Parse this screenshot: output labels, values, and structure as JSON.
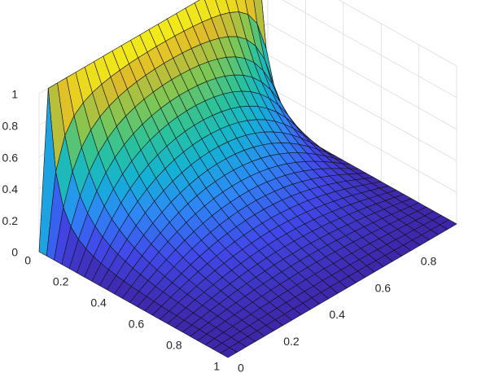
{
  "chart_data": {
    "type": "surface",
    "title": "",
    "xlabel": "",
    "ylabel": "",
    "zlabel": "",
    "xlim": [
      0,
      1
    ],
    "ylim": [
      0,
      1
    ],
    "zlim": [
      0,
      1
    ],
    "grid": true,
    "colormap": "parula",
    "colormap_stops": [
      "#3e26a8",
      "#4148e9",
      "#2e87f7",
      "#13b2d5",
      "#2ac29b",
      "#80c653",
      "#dfbb2a",
      "#f9fb15"
    ],
    "x_ticks": [
      0,
      0.2,
      0.4,
      0.6,
      0.8,
      1
    ],
    "x_tick_labels": [
      "0",
      "0.2",
      "0.4",
      "0.6",
      "0.8",
      "1"
    ],
    "y_ticks": [
      0,
      0.2,
      0.4,
      0.6,
      0.8
    ],
    "y_tick_labels": [
      "0",
      "0.2",
      "0.4",
      "0.6",
      "0.8"
    ],
    "z_ticks": [
      0,
      0.2,
      0.4,
      0.6,
      0.8,
      1
    ],
    "z_tick_labels": [
      "0",
      "0.2",
      "0.4",
      "0.6",
      "0.8",
      "1"
    ],
    "grid_x": [
      0,
      0.04,
      0.08,
      0.12,
      0.16,
      0.2,
      0.24,
      0.28,
      0.32,
      0.36,
      0.4,
      0.44,
      0.48,
      0.52,
      0.56,
      0.6,
      0.64,
      0.68,
      0.72,
      0.76,
      0.8,
      0.84,
      0.88,
      0.92,
      0.96,
      1
    ],
    "grid_y": [
      0,
      0.04,
      0.08,
      0.12,
      0.16,
      0.2,
      0.24,
      0.28,
      0.32,
      0.36,
      0.4,
      0.44,
      0.48,
      0.52,
      0.56,
      0.6,
      0.64,
      0.68,
      0.72,
      0.76,
      0.8,
      0.84,
      0.88,
      0.92,
      0.96,
      1
    ],
    "z_description": "steady-state heat distribution on unit square, boundary z=1 along x=0 edge (0<y<1), z=0 on other edges",
    "boundary": {
      "x0_edge_value": 1,
      "other_edges_value": 0
    }
  }
}
